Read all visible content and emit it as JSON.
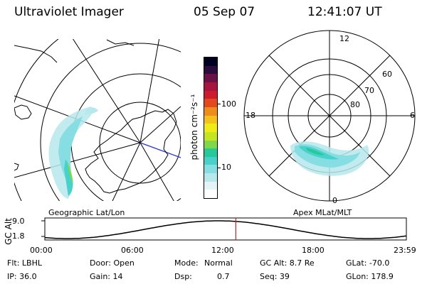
{
  "header": {
    "title": "Ultraviolet Imager",
    "date": "05 Sep 07",
    "time": "12:41:07 UT"
  },
  "geo_map": {
    "label": "Geographic Lat/Lon"
  },
  "color_scale": {
    "unit_label": "photon cm⁻²s⁻¹",
    "ticks": [
      "100",
      "10"
    ],
    "colors": [
      "#ffffff",
      "#e6f3f6",
      "#b7e8ec",
      "#86dde2",
      "#48d1cb",
      "#27c99b",
      "#7fd84a",
      "#c5e61e",
      "#f0ea16",
      "#f3c21a",
      "#ec8d1c",
      "#e4481e",
      "#cc1c2e",
      "#a8163f",
      "#6a1246",
      "#2c0c3c",
      "#000022"
    ]
  },
  "polar_map": {
    "label": "Apex MLat/MLT",
    "mlt_labels": {
      "top": "12",
      "left": "18",
      "right": "6",
      "bottom": "0"
    },
    "lat_labels": [
      "60",
      "70",
      "80"
    ]
  },
  "timeline": {
    "axis_label": "GC Alt",
    "y_ticks": [
      "9.0",
      "1.8"
    ],
    "x_ticks": [
      "00:00",
      "06:00",
      "12:00",
      "18:00",
      "23:59"
    ],
    "current_marker_hour": 12.68,
    "marker_color": "#d02020"
  },
  "info": {
    "filter": "Flt: LBHL",
    "door": "Door: Open",
    "mode_label": "Mode:",
    "mode_value": "Normal",
    "gc_alt": "GC Alt: 8.7 Re",
    "glat": "GLat: -70.0",
    "ip": "IP: 36.0",
    "gain": "Gain: 14",
    "dsp_label": "Dsp:",
    "dsp_value": "0.7",
    "seq": "Seq: 39",
    "glon": "GLon: 178.9"
  }
}
